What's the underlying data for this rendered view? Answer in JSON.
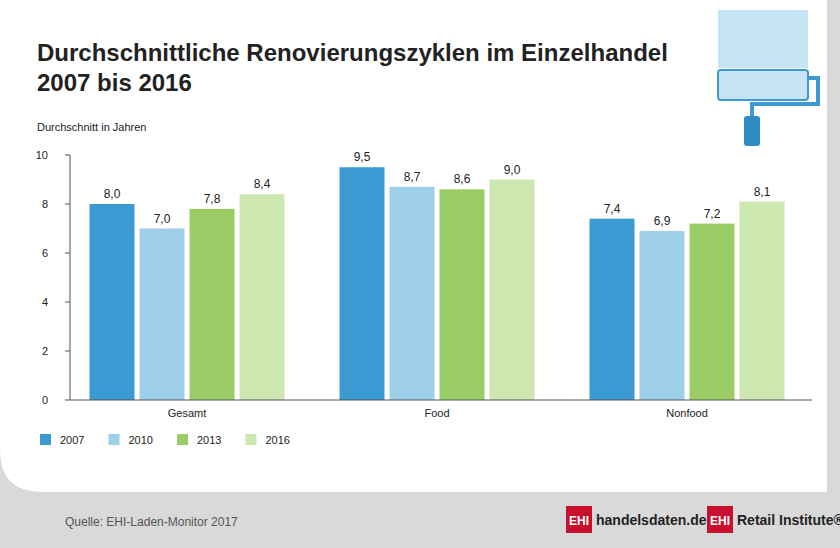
{
  "chart_data": {
    "type": "bar",
    "title": "Durchschnittliche Renovierungszyklen im Einzelhandel 2007 bis 2016",
    "y_label": "Durchschnitt in Jahren",
    "categories": [
      "Gesamt",
      "Food",
      "Nonfood"
    ],
    "series": [
      {
        "name": "2007",
        "color": "#3a9ad1",
        "values": [
          8.0,
          9.5,
          7.4
        ],
        "value_labels": [
          "8,0",
          "9,5",
          "7,4"
        ]
      },
      {
        "name": "2010",
        "color": "#9fd0ea",
        "values": [
          7.0,
          8.7,
          6.9
        ],
        "value_labels": [
          "7,0",
          "8,7",
          "6,9"
        ]
      },
      {
        "name": "2013",
        "color": "#9ccc66",
        "values": [
          7.8,
          8.6,
          7.2
        ],
        "value_labels": [
          "7,8",
          "8,6",
          "7,2"
        ]
      },
      {
        "name": "2016",
        "color": "#cde7b0",
        "values": [
          8.4,
          9.0,
          8.1
        ],
        "value_labels": [
          "8,4",
          "9,0",
          "8,1"
        ]
      }
    ],
    "ylim": [
      0,
      10
    ],
    "yticks": [
      0,
      2,
      4,
      6,
      8,
      10
    ],
    "grid": false,
    "legend": "bottom",
    "data_labels": true,
    "source": "Quelle: EHI-Laden-Monitor 2017",
    "logos": [
      {
        "badge": "EHI",
        "text": "handelsdaten.de"
      },
      {
        "badge": "EHI",
        "text": "Retail Institute®"
      }
    ]
  }
}
